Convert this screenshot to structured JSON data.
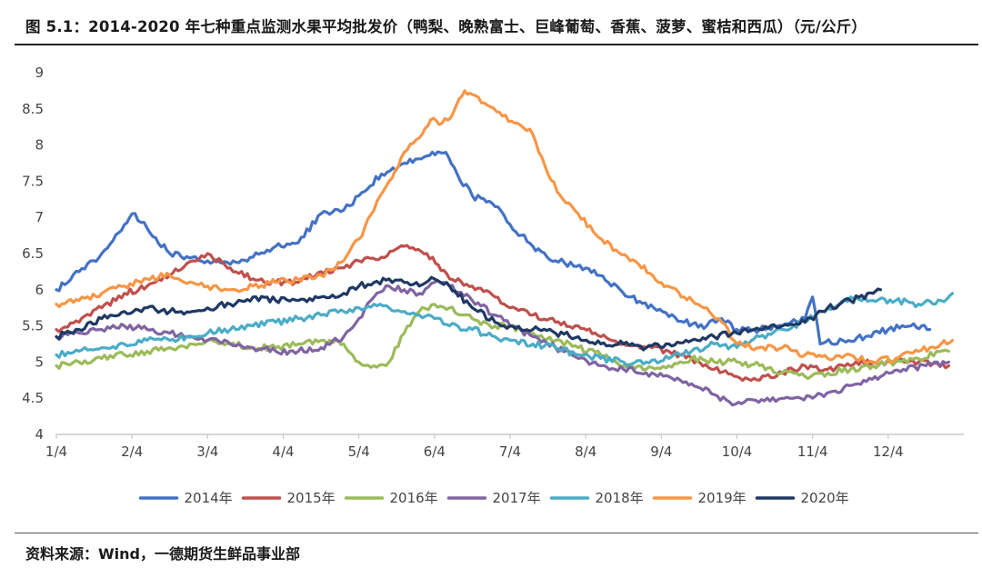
{
  "title": "图 5.1：2014-2020 年七种重点监测水果平均批发价（鸭梨、晚熟富士、巨峰葡萄、香蕉、菠萝、蜜桔和西瓜）（元/公斤）",
  "source": "资料来源：Wind，一德期货生鲜品事业部",
  "chart_data": {
    "type": "line",
    "title": "",
    "xlabel": "",
    "ylabel": "",
    "ylim": [
      4,
      9
    ],
    "yticks": [
      4,
      4.5,
      5,
      5.5,
      6,
      6.5,
      7,
      7.5,
      8,
      8.5,
      9
    ],
    "ytick_labels": [
      "4",
      "4.5",
      "5",
      "5.5",
      "6",
      "6.5",
      "7",
      "7.5",
      "8",
      "8.5",
      "9"
    ],
    "xlim": [
      1,
      13
    ],
    "xticks": [
      1,
      2,
      3,
      4,
      5,
      6,
      7,
      8,
      9,
      10,
      11,
      12
    ],
    "xtick_labels": [
      "1/4",
      "2/4",
      "3/4",
      "4/4",
      "5/4",
      "6/4",
      "7/4",
      "8/4",
      "9/4",
      "10/4",
      "11/4",
      "12/4"
    ],
    "grid": false,
    "legend_position": "bottom",
    "series": [
      {
        "name": "2014年",
        "color": "#4472C4",
        "x": [
          1,
          1.3,
          1.6,
          1.9,
          2,
          2.2,
          2.5,
          2.8,
          3,
          3.3,
          3.6,
          3.9,
          4.2,
          4.5,
          4.8,
          5,
          5.3,
          5.6,
          5.9,
          6.15,
          6.3,
          6.5,
          6.8,
          7,
          7.3,
          7.6,
          8,
          8.3,
          8.6,
          8.9,
          9.3,
          9.6,
          9.8,
          10,
          10.3,
          10.6,
          10.9,
          11,
          11.1,
          11.4,
          11.7,
          12,
          12.3,
          12.55
        ],
        "y": [
          6.0,
          6.25,
          6.5,
          6.9,
          7.05,
          6.85,
          6.5,
          6.45,
          6.4,
          6.35,
          6.45,
          6.6,
          6.65,
          7.05,
          7.1,
          7.3,
          7.6,
          7.75,
          7.85,
          7.9,
          7.6,
          7.3,
          7.15,
          6.9,
          6.6,
          6.4,
          6.3,
          6.1,
          5.9,
          5.75,
          5.55,
          5.5,
          5.6,
          5.45,
          5.45,
          5.5,
          5.6,
          5.9,
          5.25,
          5.3,
          5.35,
          5.45,
          5.5,
          5.45
        ]
      },
      {
        "name": "2015年",
        "color": "#C0504D",
        "x": [
          1,
          1.3,
          1.6,
          1.9,
          2.2,
          2.5,
          2.8,
          3,
          3.3,
          3.6,
          3.9,
          4.2,
          4.5,
          4.8,
          5,
          5.3,
          5.6,
          5.9,
          6.2,
          6.5,
          6.8,
          7,
          7.3,
          7.6,
          7.9,
          8.2,
          8.5,
          8.8,
          9.1,
          9.4,
          9.7,
          10,
          10.3,
          10.6,
          10.9,
          11.2,
          11.5,
          11.8,
          12.1,
          12.4,
          12.8
        ],
        "y": [
          5.45,
          5.55,
          5.75,
          5.95,
          6.05,
          6.2,
          6.4,
          6.5,
          6.3,
          6.15,
          6.1,
          6.1,
          6.25,
          6.3,
          6.4,
          6.45,
          6.6,
          6.5,
          6.15,
          6.05,
          5.9,
          5.75,
          5.65,
          5.55,
          5.5,
          5.35,
          5.25,
          5.2,
          5.15,
          5.05,
          4.9,
          4.8,
          4.75,
          4.85,
          4.95,
          4.9,
          4.95,
          5.0,
          5.0,
          5.0,
          4.95
        ]
      },
      {
        "name": "2016年",
        "color": "#9BBB59",
        "x": [
          1,
          1.3,
          1.6,
          1.9,
          2.2,
          2.5,
          2.8,
          3,
          3.3,
          3.6,
          3.9,
          4.2,
          4.5,
          4.8,
          5,
          5.2,
          5.4,
          5.6,
          5.8,
          6,
          6.2,
          6.5,
          6.8,
          7,
          7.3,
          7.6,
          7.9,
          8.2,
          8.5,
          8.8,
          9.1,
          9.4,
          9.7,
          10,
          10.3,
          10.6,
          10.9,
          11.2,
          11.5,
          11.8,
          12.1,
          12.4,
          12.8
        ],
        "y": [
          4.95,
          5.0,
          5.05,
          5.1,
          5.15,
          5.2,
          5.25,
          5.3,
          5.25,
          5.2,
          5.2,
          5.25,
          5.3,
          5.25,
          5.0,
          4.95,
          5.0,
          5.4,
          5.7,
          5.8,
          5.75,
          5.6,
          5.5,
          5.5,
          5.4,
          5.3,
          5.2,
          5.1,
          4.95,
          4.9,
          4.95,
          5.05,
          5.0,
          5.0,
          4.95,
          4.85,
          4.8,
          4.85,
          4.9,
          4.95,
          5.0,
          5.05,
          5.15
        ]
      },
      {
        "name": "2017年",
        "color": "#8064A2",
        "x": [
          1,
          1.3,
          1.6,
          1.9,
          2.2,
          2.5,
          2.8,
          3,
          3.3,
          3.6,
          3.9,
          4.2,
          4.5,
          4.8,
          5,
          5.2,
          5.4,
          5.6,
          5.8,
          6,
          6.2,
          6.5,
          6.8,
          7,
          7.3,
          7.6,
          7.9,
          8.2,
          8.5,
          8.8,
          9.1,
          9.4,
          9.7,
          9.9,
          10.1,
          10.4,
          10.7,
          11,
          11.3,
          11.6,
          11.9,
          12.2,
          12.5,
          12.8
        ],
        "y": [
          5.35,
          5.4,
          5.45,
          5.5,
          5.45,
          5.4,
          5.35,
          5.3,
          5.25,
          5.2,
          5.15,
          5.15,
          5.2,
          5.35,
          5.6,
          5.9,
          6.05,
          6.0,
          5.95,
          6.1,
          6.05,
          5.85,
          5.65,
          5.5,
          5.35,
          5.2,
          5.05,
          4.95,
          4.9,
          4.85,
          4.8,
          4.7,
          4.55,
          4.45,
          4.45,
          4.5,
          4.5,
          4.5,
          4.6,
          4.7,
          4.8,
          4.9,
          4.95,
          5.0
        ]
      },
      {
        "name": "2018年",
        "color": "#4BACC6",
        "x": [
          1,
          1.3,
          1.6,
          1.9,
          2.2,
          2.5,
          2.8,
          3,
          3.3,
          3.6,
          3.9,
          4.2,
          4.5,
          4.8,
          5,
          5.2,
          5.4,
          5.6,
          5.8,
          6,
          6.2,
          6.5,
          6.8,
          7,
          7.3,
          7.6,
          7.9,
          8.2,
          8.5,
          8.8,
          9.1,
          9.4,
          9.7,
          10,
          10.3,
          10.6,
          10.9,
          11.2,
          11.5,
          11.8,
          12.1,
          12.4,
          12.7,
          12.85
        ],
        "y": [
          5.1,
          5.15,
          5.2,
          5.25,
          5.3,
          5.3,
          5.35,
          5.4,
          5.45,
          5.5,
          5.55,
          5.6,
          5.65,
          5.7,
          5.75,
          5.8,
          5.75,
          5.7,
          5.65,
          5.6,
          5.5,
          5.45,
          5.35,
          5.3,
          5.25,
          5.2,
          5.1,
          5.05,
          5.0,
          5.0,
          5.05,
          5.15,
          5.25,
          5.2,
          5.35,
          5.45,
          5.55,
          5.75,
          5.9,
          5.85,
          5.85,
          5.8,
          5.85,
          5.95
        ]
      },
      {
        "name": "2019年",
        "color": "#F79646",
        "x": [
          1,
          1.3,
          1.6,
          1.9,
          2.2,
          2.5,
          2.8,
          3,
          3.3,
          3.6,
          3.9,
          4.2,
          4.5,
          4.8,
          5,
          5.2,
          5.4,
          5.6,
          5.8,
          5.95,
          6.1,
          6.25,
          6.4,
          6.5,
          6.7,
          6.9,
          7.1,
          7.3,
          7.5,
          7.7,
          7.9,
          8.1,
          8.4,
          8.7,
          9,
          9.3,
          9.6,
          9.8,
          10,
          10.3,
          10.6,
          10.9,
          11.2,
          11.5,
          11.8,
          12.1,
          12.4,
          12.7,
          12.85
        ],
        "y": [
          5.8,
          5.85,
          5.95,
          6.05,
          6.15,
          6.2,
          6.1,
          6.05,
          6.0,
          6.05,
          6.1,
          6.15,
          6.2,
          6.4,
          6.7,
          7.1,
          7.5,
          7.9,
          8.1,
          8.35,
          8.3,
          8.45,
          8.75,
          8.7,
          8.55,
          8.4,
          8.3,
          8.15,
          7.6,
          7.25,
          7.05,
          6.8,
          6.55,
          6.35,
          6.1,
          5.9,
          5.75,
          5.55,
          5.25,
          5.2,
          5.2,
          5.1,
          5.05,
          5.1,
          5.0,
          5.05,
          5.15,
          5.25,
          5.3
        ]
      },
      {
        "name": "2020年",
        "color": "#1F3864",
        "x": [
          1,
          1.3,
          1.6,
          1.9,
          2.2,
          2.5,
          2.8,
          3,
          3.3,
          3.6,
          3.9,
          4.2,
          4.5,
          4.8,
          5,
          5.2,
          5.4,
          5.6,
          5.8,
          6,
          6.2,
          6.5,
          6.8,
          7,
          7.3,
          7.6,
          7.9,
          8.2,
          8.5,
          8.8,
          9.1,
          9.4,
          9.7,
          10,
          10.3,
          10.6,
          10.9,
          11.2,
          11.5,
          11.8,
          11.9
        ],
        "y": [
          5.35,
          5.45,
          5.6,
          5.7,
          5.75,
          5.7,
          5.7,
          5.75,
          5.8,
          5.9,
          5.85,
          5.85,
          5.9,
          5.95,
          6.05,
          6.1,
          6.15,
          6.1,
          6.05,
          6.15,
          6.05,
          5.75,
          5.55,
          5.5,
          5.45,
          5.4,
          5.35,
          5.25,
          5.25,
          5.2,
          5.25,
          5.3,
          5.35,
          5.4,
          5.45,
          5.5,
          5.55,
          5.75,
          5.85,
          5.95,
          6.0
        ]
      }
    ]
  }
}
